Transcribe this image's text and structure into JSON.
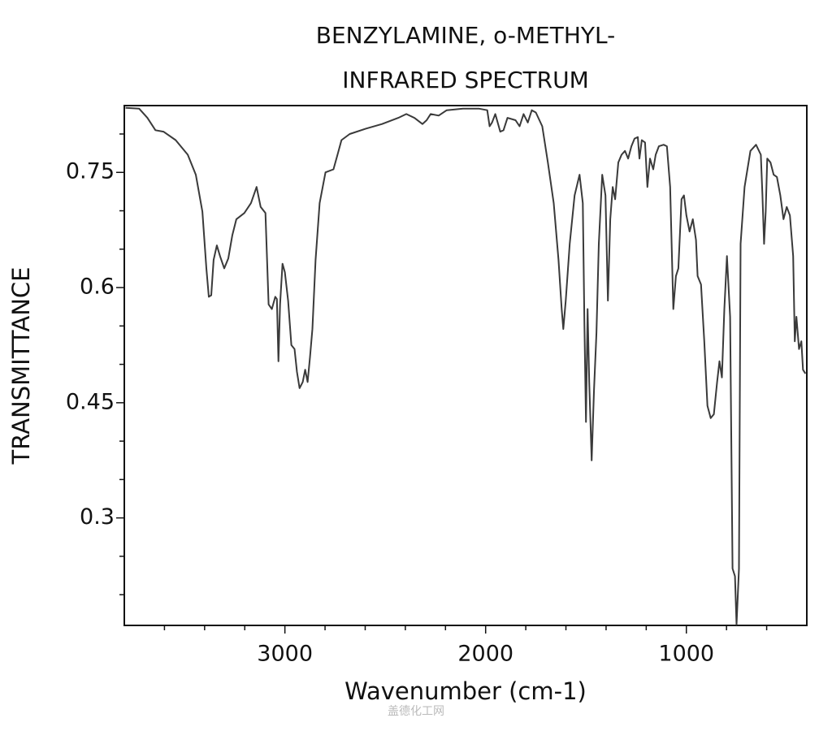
{
  "chart_data": {
    "type": "line",
    "title": "BENZYLAMINE, o-METHYL-",
    "subtitle": "INFRARED SPECTRUM",
    "x_label": "Wavenumber (cm-1)",
    "y_label": "TRANSMITTANCE",
    "watermark": "盖德化工网",
    "xlim": [
      3800,
      400
    ],
    "ylim": [
      0.16,
      0.837
    ],
    "xticks": [
      3000,
      2000,
      1000
    ],
    "xminorticks": [
      3600,
      3400,
      3200,
      2800,
      2600,
      2400,
      2200,
      1800,
      1600,
      1400,
      1200,
      800,
      600
    ],
    "yticks": [
      0.3,
      0.45,
      0.6,
      0.75
    ],
    "yminorticks": [
      0.2,
      0.25,
      0.35,
      0.4,
      0.5,
      0.55,
      0.65,
      0.7,
      0.8
    ],
    "grid": false,
    "x": [
      3794,
      3726,
      3685,
      3645,
      3605,
      3544,
      3484,
      3444,
      3411,
      3391,
      3379,
      3367,
      3355,
      3339,
      3323,
      3302,
      3282,
      3262,
      3242,
      3202,
      3169,
      3141,
      3121,
      3097,
      3081,
      3065,
      3048,
      3040,
      3032,
      3024,
      3012,
      3000,
      2984,
      2968,
      2952,
      2940,
      2927,
      2911,
      2899,
      2887,
      2875,
      2863,
      2847,
      2827,
      2798,
      2758,
      2738,
      2718,
      2677,
      2597,
      2516,
      2435,
      2395,
      2355,
      2315,
      2294,
      2274,
      2234,
      2194,
      2113,
      2032,
      1992,
      1980,
      1968,
      1952,
      1927,
      1911,
      1891,
      1851,
      1831,
      1811,
      1790,
      1770,
      1750,
      1718,
      1690,
      1661,
      1637,
      1621,
      1613,
      1601,
      1581,
      1557,
      1532,
      1516,
      1508,
      1500,
      1492,
      1484,
      1472,
      1460,
      1448,
      1436,
      1419,
      1403,
      1391,
      1379,
      1367,
      1355,
      1339,
      1323,
      1306,
      1290,
      1274,
      1258,
      1242,
      1234,
      1222,
      1206,
      1194,
      1181,
      1165,
      1153,
      1137,
      1113,
      1097,
      1081,
      1065,
      1052,
      1040,
      1024,
      1012,
      1000,
      984,
      968,
      952,
      944,
      927,
      911,
      895,
      879,
      863,
      847,
      835,
      823,
      811,
      798,
      782,
      770,
      758,
      750,
      738,
      730,
      710,
      681,
      653,
      629,
      621,
      613,
      605,
      597,
      581,
      565,
      549,
      532,
      516,
      500,
      484,
      468,
      460,
      452,
      439,
      427,
      419,
      407
    ],
    "series": [
      {
        "name": "o-Methylbenzylamine",
        "color": "#3a3a3a",
        "values": [
          0.834,
          0.833,
          0.821,
          0.805,
          0.803,
          0.792,
          0.773,
          0.747,
          0.699,
          0.625,
          0.588,
          0.59,
          0.636,
          0.655,
          0.641,
          0.625,
          0.638,
          0.668,
          0.689,
          0.697,
          0.71,
          0.731,
          0.705,
          0.697,
          0.578,
          0.572,
          0.588,
          0.585,
          0.504,
          0.578,
          0.631,
          0.62,
          0.583,
          0.525,
          0.52,
          0.49,
          0.469,
          0.477,
          0.493,
          0.477,
          0.509,
          0.546,
          0.636,
          0.71,
          0.75,
          0.754,
          0.773,
          0.792,
          0.8,
          0.807,
          0.813,
          0.821,
          0.826,
          0.821,
          0.813,
          0.818,
          0.826,
          0.824,
          0.831,
          0.833,
          0.833,
          0.831,
          0.81,
          0.815,
          0.826,
          0.803,
          0.805,
          0.821,
          0.818,
          0.81,
          0.826,
          0.815,
          0.831,
          0.828,
          0.81,
          0.763,
          0.71,
          0.636,
          0.572,
          0.546,
          0.583,
          0.657,
          0.72,
          0.747,
          0.71,
          0.551,
          0.425,
          0.572,
          0.477,
          0.375,
          0.467,
          0.541,
          0.657,
          0.747,
          0.72,
          0.583,
          0.689,
          0.731,
          0.715,
          0.763,
          0.773,
          0.778,
          0.768,
          0.784,
          0.794,
          0.796,
          0.768,
          0.792,
          0.789,
          0.731,
          0.768,
          0.754,
          0.773,
          0.784,
          0.786,
          0.784,
          0.731,
          0.572,
          0.615,
          0.625,
          0.715,
          0.72,
          0.694,
          0.673,
          0.689,
          0.662,
          0.615,
          0.604,
          0.53,
          0.446,
          0.43,
          0.435,
          0.477,
          0.504,
          0.483,
          0.572,
          0.641,
          0.562,
          0.234,
          0.224,
          0.161,
          0.234,
          0.657,
          0.731,
          0.778,
          0.786,
          0.773,
          0.72,
          0.657,
          0.699,
          0.768,
          0.763,
          0.747,
          0.744,
          0.72,
          0.689,
          0.705,
          0.694,
          0.641,
          0.53,
          0.562,
          0.52,
          0.53,
          0.493,
          0.488
        ]
      }
    ]
  }
}
